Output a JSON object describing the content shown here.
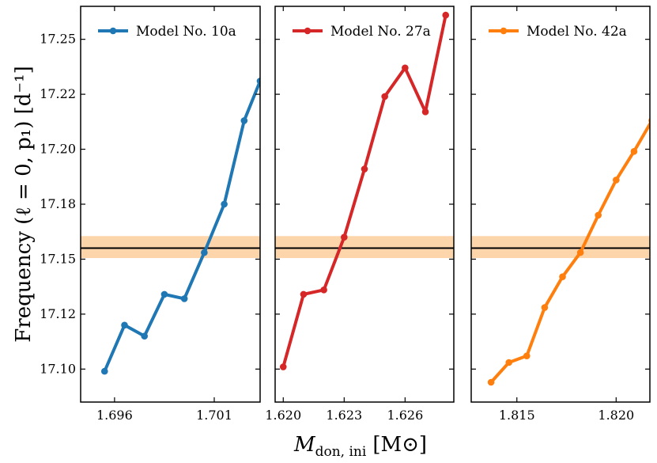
{
  "chart_data": {
    "type": "line",
    "ylabel": "Frequency (ℓ = 0, p₁) [d⁻¹]",
    "xlabel": "M",
    "xlabel_sub": "don, ini",
    "xlabel_unit": "[M⊙]",
    "ylim": [
      17.085,
      17.265
    ],
    "yticks": [
      17.1,
      17.12,
      17.15,
      17.18,
      17.2,
      17.22,
      17.25
    ],
    "ytick_labels": [
      "17.10",
      "17.12",
      "17.15",
      "17.18",
      "17.20",
      "17.22",
      "17.25"
    ],
    "ytick_values": [
      17.1,
      17.125,
      17.15,
      17.175,
      17.2,
      17.225,
      17.25
    ],
    "observed": {
      "value": 17.155,
      "band_low": 17.1505,
      "band_high": 17.1605
    },
    "panels": [
      {
        "name": "Model No. 10a",
        "color": "#1f77b4",
        "xlim": [
          1.6943,
          1.7033
        ],
        "xticks": [
          1.696,
          1.701
        ],
        "xtick_labels": [
          "1.696",
          "1.701"
        ],
        "x": [
          1.6955,
          1.6965,
          1.6975,
          1.6985,
          1.6995,
          1.7005,
          1.7015,
          1.7025,
          1.7033
        ],
        "y": [
          17.099,
          17.12,
          17.115,
          17.134,
          17.132,
          17.153,
          17.175,
          17.213,
          17.231
        ]
      },
      {
        "name": "Model No. 27a",
        "color": "#d62728",
        "xlim": [
          1.6196,
          1.6284
        ],
        "xticks": [
          1.62,
          1.623,
          1.626
        ],
        "xtick_labels": [
          "1.620",
          "1.623",
          "1.626"
        ],
        "x": [
          1.62,
          1.621,
          1.622,
          1.623,
          1.624,
          1.625,
          1.626,
          1.627,
          1.628
        ],
        "y": [
          17.101,
          17.134,
          17.136,
          17.16,
          17.191,
          17.224,
          17.237,
          17.217,
          17.261
        ]
      },
      {
        "name": "Model No. 42a",
        "color": "#ff7f0e",
        "xlim": [
          1.8127,
          1.8217
        ],
        "xticks": [
          1.815,
          1.82
        ],
        "xtick_labels": [
          "1.815",
          "1.820"
        ],
        "x": [
          1.8137,
          1.8146,
          1.8155,
          1.8164,
          1.8173,
          1.8182,
          1.8191,
          1.82,
          1.8209,
          1.8218
        ],
        "y": [
          17.094,
          17.103,
          17.106,
          17.128,
          17.142,
          17.153,
          17.17,
          17.186,
          17.199,
          17.213
        ]
      }
    ]
  }
}
